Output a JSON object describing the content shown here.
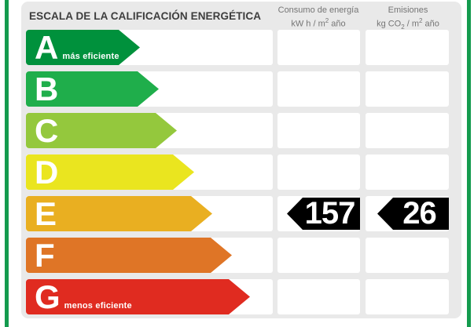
{
  "header": {
    "title": "ESCALA DE LA CALIFICACIÓN ENERGÉTICA",
    "consumo": {
      "name": "Consumo de energía",
      "unit_p1": "kW h  / m",
      "unit_sup": "2",
      "unit_p2": " año"
    },
    "emisiones": {
      "name": "Emisiones",
      "unit_p1": "kg CO",
      "unit_sub": "2",
      "unit_p2": " / m",
      "unit_sup": "2",
      "unit_p3": " año"
    }
  },
  "chart_data": {
    "type": "bar",
    "title": "ESCALA DE LA CALIFICACIÓN ENERGÉTICA",
    "categories": [
      "A",
      "B",
      "C",
      "D",
      "E",
      "F",
      "G"
    ],
    "series": [
      {
        "name": "arrow_relative_length_px",
        "values": [
          145,
          169,
          192,
          214,
          237,
          262,
          285
        ]
      }
    ],
    "annotations": {
      "A": "más eficiente",
      "G": "menos eficiente",
      "assigned_rating": "E",
      "consumo_kwh_m2_ano": 157,
      "emisiones_kgco2_m2_ano": 26
    },
    "legend_position": "none",
    "grid": false
  },
  "scale": {
    "rows": [
      {
        "letter": "A",
        "note": "más eficiente",
        "color": "#00913C",
        "arrow_width": 145
      },
      {
        "letter": "B",
        "note": "",
        "color": "#1FAE4B",
        "arrow_width": 169
      },
      {
        "letter": "C",
        "note": "",
        "color": "#94C83D",
        "arrow_width": 192
      },
      {
        "letter": "D",
        "note": "",
        "color": "#EAE51F",
        "arrow_width": 214
      },
      {
        "letter": "E",
        "note": "",
        "color": "#E9AF21",
        "arrow_width": 237
      },
      {
        "letter": "F",
        "note": "",
        "color": "#DF7526",
        "arrow_width": 262
      },
      {
        "letter": "G",
        "note": "menos eficiente",
        "color": "#E02B20",
        "arrow_width": 285
      }
    ],
    "row_pitch": 53
  },
  "rating": {
    "letter": "E",
    "consumo_value": "157",
    "emisiones_value": "26"
  },
  "colors": {
    "accent_green": "#149B4E",
    "panel_bg": "#E9E9E9",
    "pointer_bg": "#000000",
    "title_text": "#3D3D3D",
    "header_text": "#757575"
  }
}
